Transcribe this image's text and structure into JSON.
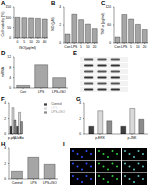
{
  "chart_data": [
    {
      "type": "bar",
      "title": "A",
      "y_label": "Cell viability (%)",
      "x_label": "ISO(μg/ml)",
      "categories": [
        "0",
        "5",
        "10",
        "20",
        "40"
      ],
      "values": [
        100,
        98,
        97,
        95,
        92
      ],
      "color": "#a6a6a6",
      "ylim": [
        0,
        150
      ],
      "yticks": [
        0,
        50,
        100,
        150
      ]
    },
    {
      "type": "bar",
      "title": "B",
      "y_label": "NO (μM)",
      "categories": [
        "Con",
        "LPS",
        "5",
        "10",
        "20"
      ],
      "values": [
        1,
        3.2,
        2.6,
        2.1,
        1.6
      ],
      "color": "#a6a6a6",
      "ylim": [
        0,
        4
      ],
      "yticks": [
        0,
        2,
        4
      ]
    },
    {
      "type": "bar",
      "title": "C",
      "y_label": "TNF-α (pg/ml)",
      "categories": [
        "Con",
        "LPS",
        "5",
        "10",
        "20"
      ],
      "values": [
        20,
        95,
        80,
        62,
        45
      ],
      "color": "#a6a6a6",
      "ylim": [
        0,
        120
      ],
      "yticks": [
        0,
        60,
        120
      ]
    },
    {
      "type": "bar",
      "title": "D",
      "y_label": "mRNA",
      "categories": [
        "Con",
        "LPS",
        "LPS+ISO"
      ],
      "values": [
        1,
        9,
        4
      ],
      "color": "#a6a6a6",
      "ylim": [
        0,
        12
      ],
      "yticks": [
        0,
        4,
        8,
        12
      ]
    },
    {
      "type": "image",
      "title": "E"
    },
    {
      "type": "bar",
      "title": "F",
      "categories": [
        "p-p65",
        "p-IκBα"
      ],
      "series": [
        {
          "name": "Control",
          "color": "#404040",
          "values": [
            1,
            1
          ]
        },
        {
          "name": "LPS",
          "color": "#d9d9d9",
          "values": [
            3.4,
            2.8
          ]
        },
        {
          "name": "LPS+ISO",
          "color": "#8c8c8c",
          "values": [
            1.8,
            1.6
          ]
        }
      ],
      "ylim": [
        0,
        4
      ],
      "yticks": [
        0,
        2,
        4
      ],
      "legend": "right"
    },
    {
      "type": "bar",
      "title": "G",
      "categories": [
        "p-ERK",
        "p-JNK"
      ],
      "series": [
        {
          "name": "Control",
          "color": "#404040",
          "values": [
            1,
            1
          ]
        },
        {
          "name": "LPS",
          "color": "#d9d9d9",
          "values": [
            3,
            3.3
          ]
        },
        {
          "name": "LPS+ISO",
          "color": "#8c8c8c",
          "values": [
            1.7,
            1.9
          ]
        }
      ],
      "ylim": [
        0,
        4
      ],
      "yticks": [
        0,
        2,
        4
      ]
    },
    {
      "type": "bar",
      "title": "H",
      "categories": [
        "Control",
        "LPS",
        "LPS+ISO"
      ],
      "values": [
        1,
        2.8,
        1.9
      ],
      "color": "#a6a6a6",
      "ylim": [
        0,
        4
      ],
      "yticks": [
        0,
        2,
        4
      ]
    },
    {
      "type": "image",
      "title": "I"
    }
  ]
}
